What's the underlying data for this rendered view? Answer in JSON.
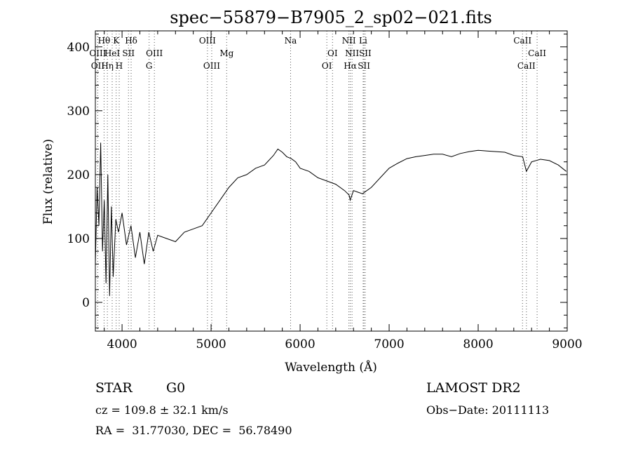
{
  "chart_data": {
    "type": "line",
    "title": "spec−55879−B7905_2_sp02−021.fits",
    "xlabel": "Wavelength (Å)",
    "ylabel": "Flux (relative)",
    "xlim": [
      3700,
      9000
    ],
    "ylim": [
      -45,
      425
    ],
    "xticks": [
      4000,
      5000,
      6000,
      7000,
      8000,
      9000
    ],
    "yticks": [
      0,
      100,
      200,
      300,
      400
    ],
    "grid": false,
    "series": [
      {
        "x": [
          3700,
          3720,
          3740,
          3760,
          3780,
          3800,
          3820,
          3840,
          3860,
          3880,
          3900,
          3930,
          3960,
          4000,
          4050,
          4100,
          4150,
          4200,
          4250,
          4300,
          4350,
          4400,
          4500,
          4600,
          4700,
          4800,
          4900,
          5000,
          5100,
          5200,
          5300,
          5400,
          5500,
          5600,
          5700,
          5750,
          5800,
          5850,
          5900,
          5950,
          6000,
          6100,
          6200,
          6300,
          6400,
          6500,
          6550,
          6563,
          6600,
          6700,
          6800,
          6900,
          7000,
          7100,
          7200,
          7300,
          7400,
          7500,
          7600,
          7700,
          7800,
          7900,
          8000,
          8100,
          8200,
          8300,
          8400,
          8500,
          8542,
          8600,
          8700,
          8800,
          8900,
          8990
        ],
        "y": [
          60,
          180,
          120,
          250,
          80,
          160,
          30,
          200,
          10,
          150,
          40,
          130,
          110,
          140,
          90,
          120,
          70,
          110,
          60,
          110,
          80,
          105,
          100,
          95,
          110,
          115,
          120,
          140,
          160,
          180,
          195,
          200,
          210,
          215,
          230,
          240,
          235,
          228,
          225,
          220,
          210,
          205,
          195,
          190,
          185,
          175,
          168,
          160,
          175,
          170,
          180,
          195,
          210,
          218,
          225,
          228,
          230,
          232,
          232,
          228,
          233,
          236,
          238,
          237,
          236,
          235,
          230,
          228,
          205,
          220,
          224,
          222,
          215,
          205
        ]
      }
    ],
    "lines": [
      {
        "label": "Hθ",
        "row": 1,
        "x": 3798
      },
      {
        "label": "K",
        "row": 1,
        "x": 3934
      },
      {
        "label": "Hδ",
        "row": 1,
        "x": 4102
      },
      {
        "label": "OIII",
        "row": 1,
        "x": 4959
      },
      {
        "label": "Na",
        "row": 1,
        "x": 5893
      },
      {
        "label": "NII",
        "row": 1,
        "x": 6548
      },
      {
        "label": "Li",
        "row": 1,
        "x": 6708
      },
      {
        "label": "CaII",
        "row": 1,
        "x": 8498
      },
      {
        "label": "OIII",
        "row": 2,
        "x": 3727
      },
      {
        "label": "HeI",
        "row": 2,
        "x": 3889
      },
      {
        "label": "SII",
        "row": 2,
        "x": 4072
      },
      {
        "label": "OIII",
        "row": 2,
        "x": 4363
      },
      {
        "label": "Mg",
        "row": 2,
        "x": 5175
      },
      {
        "label": "OI",
        "row": 2,
        "x": 6364
      },
      {
        "label": "NII",
        "row": 2,
        "x": 6583
      },
      {
        "label": "SII",
        "row": 2,
        "x": 6731
      },
      {
        "label": "CaII",
        "row": 2,
        "x": 8662
      },
      {
        "label": "OII",
        "row": 3,
        "x": 3727
      },
      {
        "label": "Hη",
        "row": 3,
        "x": 3835
      },
      {
        "label": "H",
        "row": 3,
        "x": 3968
      },
      {
        "label": "G",
        "row": 3,
        "x": 4304
      },
      {
        "label": "OIII",
        "row": 3,
        "x": 5007
      },
      {
        "label": "OI",
        "row": 3,
        "x": 6300
      },
      {
        "label": "Hα",
        "row": 3,
        "x": 6563
      },
      {
        "label": "SII",
        "row": 3,
        "x": 6717
      },
      {
        "label": "CaII",
        "row": 3,
        "x": 8542
      }
    ]
  },
  "info": {
    "object_class": "STAR",
    "subclass": "G0",
    "survey": "LAMOST DR2",
    "redshift": "cz = 109.8 ± 32.1 km/s",
    "obs_date": "Obs−Date: 20111113",
    "coords": "RA =  31.77030, DEC =  56.78490"
  }
}
